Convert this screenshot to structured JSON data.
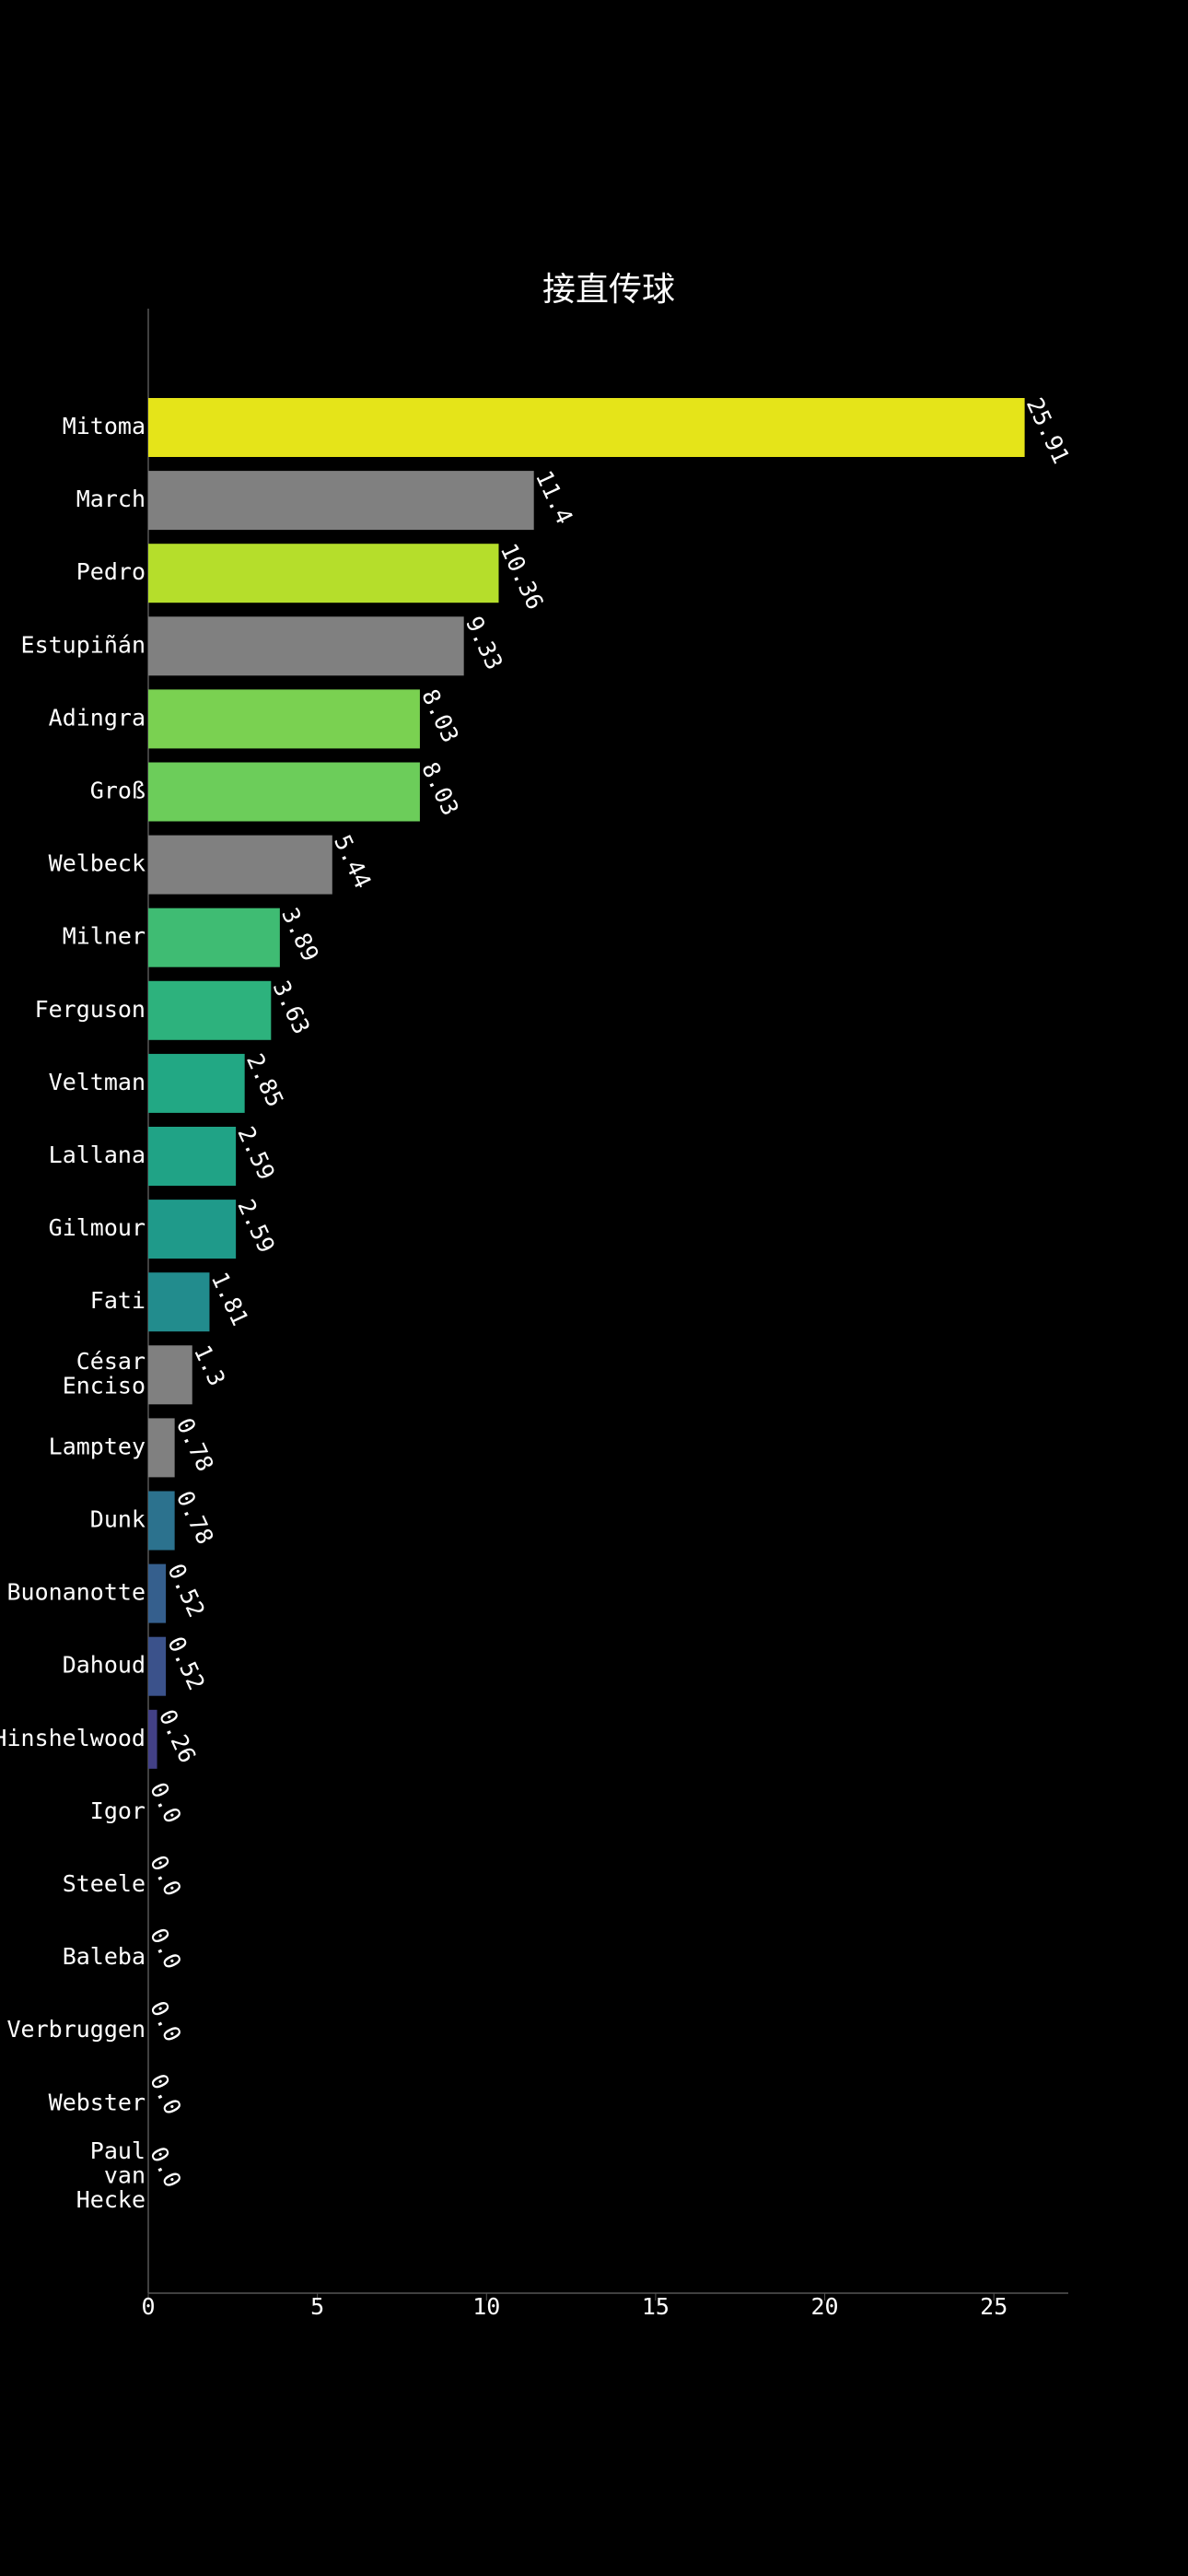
{
  "chart_data": {
    "type": "barh",
    "title": "接直传球",
    "categories": [
      "Mitoma",
      "March",
      "Pedro",
      "Estupiñán",
      "Adingra",
      "Groß",
      "Welbeck",
      "Milner",
      "Ferguson",
      "Veltman",
      "Lallana",
      "Gilmour",
      "Fati",
      "César Enciso",
      "Lamptey",
      "Dunk",
      "Buonanotte",
      "Dahoud",
      "Hinshelwood",
      "Igor",
      "Steele",
      "Baleba",
      "Verbruggen",
      "Webster",
      "Paul van Hecke"
    ],
    "values": [
      25.91,
      11.4,
      10.36,
      9.33,
      8.03,
      8.03,
      5.44,
      3.89,
      3.63,
      2.85,
      2.59,
      2.59,
      1.81,
      1.3,
      0.78,
      0.78,
      0.52,
      0.52,
      0.26,
      0,
      0,
      0,
      0,
      0,
      0
    ],
    "value_labels": [
      "25.91",
      "11.4",
      "10.36",
      "9.33",
      "8.03",
      "8.03",
      "5.44",
      "3.89",
      "3.63",
      "2.85",
      "2.59",
      "2.59",
      "1.81",
      "1.3",
      "0.78",
      "0.78",
      "0.52",
      "0.52",
      "0.26",
      "0.0",
      "0.0",
      "0.0",
      "0.0",
      "0.0",
      "0.0"
    ],
    "colors": [
      "#e5e419",
      "#808080",
      "#b5de2b",
      "#808080",
      "#7ad151",
      "#6ccd5a",
      "#808080",
      "#3fbc73",
      "#2db27d",
      "#22a884",
      "#20a386",
      "#1f9a8a",
      "#228c8d",
      "#808080",
      "#808080",
      "#2c728e",
      "#355f8d",
      "#3b528b",
      "#424086",
      "#440154",
      "#440154",
      "#440154",
      "#440154",
      "#440154",
      "#440154"
    ],
    "xlim": [
      0,
      27.2
    ],
    "xticks": [
      0,
      5,
      10,
      15,
      20,
      25
    ]
  }
}
